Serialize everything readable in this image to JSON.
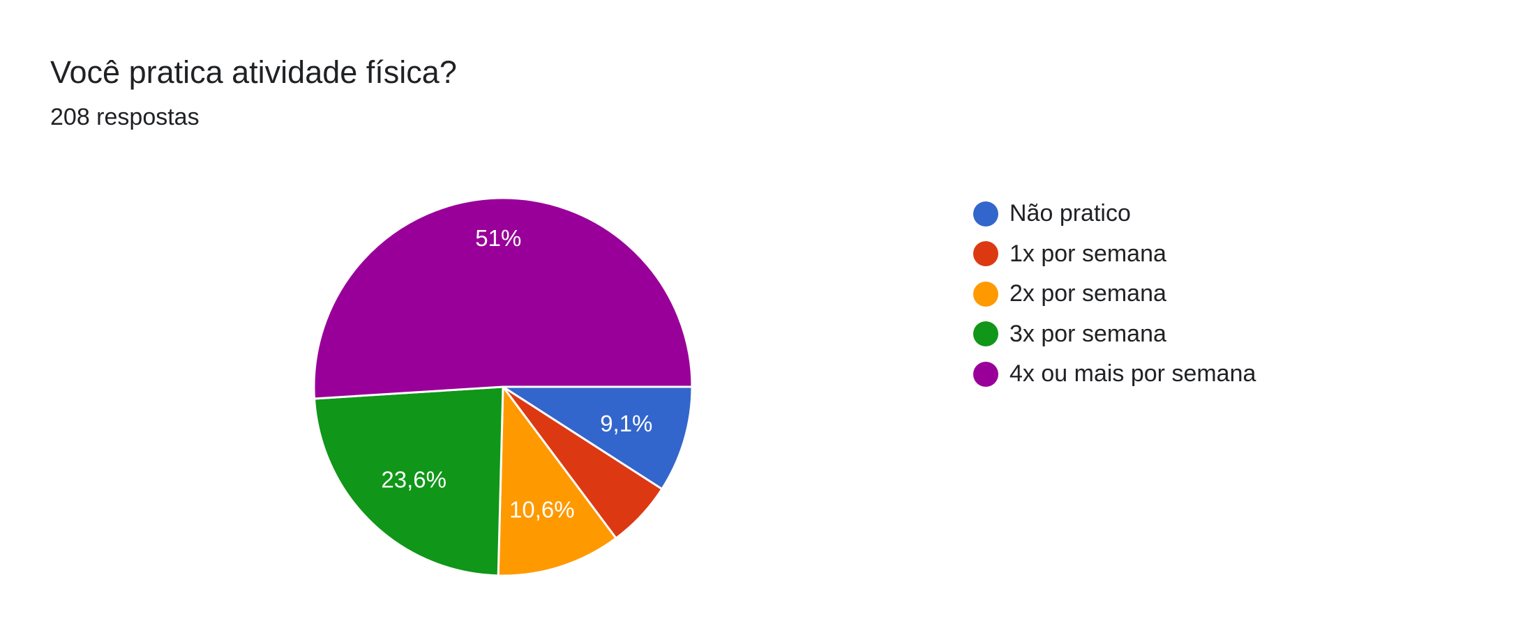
{
  "header": {
    "title": "Você pratica atividade física?",
    "subtitle": "208 respostas"
  },
  "chart_data": {
    "type": "pie",
    "title": "Você pratica atividade física?",
    "subtitle": "208 respostas",
    "categories": [
      "Não pratico",
      "1x por semana",
      "2x por semana",
      "3x por semana",
      "4x ou mais por semana"
    ],
    "values": [
      9.1,
      5.7,
      10.6,
      23.6,
      51
    ],
    "labels": [
      "9,1%",
      "",
      "10,6%",
      "23,6%",
      "51%"
    ],
    "colors": [
      "#3366cc",
      "#dc3912",
      "#ff9900",
      "#109618",
      "#990099"
    ],
    "legend_position": "right"
  }
}
